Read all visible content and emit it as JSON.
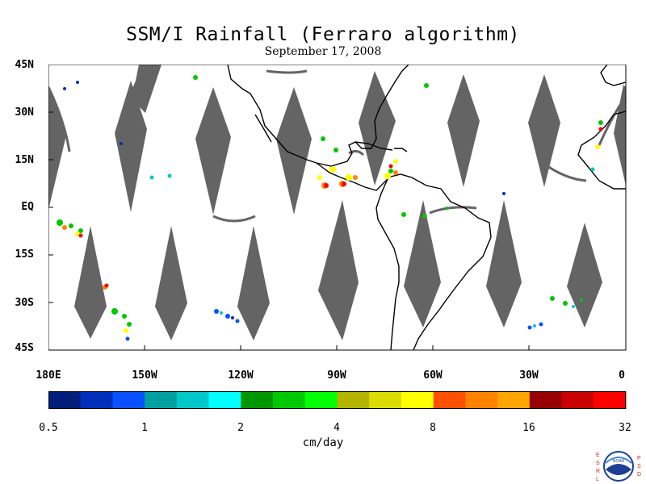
{
  "title": "SSM/I Rainfall (Ferraro algorithm)",
  "subtitle": "September 17, 2008",
  "y_axis_labels": [
    "45N",
    "30N",
    "15N",
    "EQ",
    "15S",
    "30S",
    "45S"
  ],
  "x_axis_labels": [
    "180E",
    "150W",
    "120W",
    "90W",
    "60W",
    "30W",
    "0"
  ],
  "colorbar": {
    "units": "cm/day",
    "tick_labels": [
      "0.5",
      "1",
      "2",
      "4",
      "8",
      "16",
      "32"
    ],
    "colors": [
      "#001e7c",
      "#002fb9",
      "#0a50ff",
      "#00a0a0",
      "#00c8c8",
      "#00ffff",
      "#009600",
      "#00c800",
      "#00ff00",
      "#b4b400",
      "#dcdc00",
      "#ffff00",
      "#ff5000",
      "#ff8200",
      "#ffa500",
      "#960000",
      "#c80000",
      "#ff0000"
    ]
  },
  "colors": {
    "no_data_swath": "#646464",
    "land_outline": "#000000"
  },
  "logo": {
    "left_letters": "ESRL",
    "right_letters": "PSD",
    "seal_text": "NOAA"
  }
}
